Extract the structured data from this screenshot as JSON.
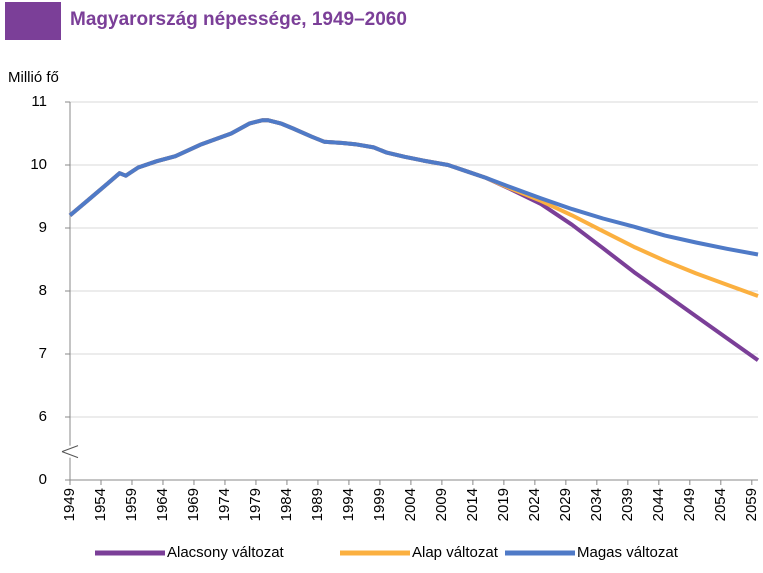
{
  "chart_data": {
    "type": "line",
    "title": "Magyarország népessége, 1949–2060",
    "ylabel": "Millió fő",
    "x": [
      1949,
      1952,
      1955,
      1957,
      1958,
      1960,
      1963,
      1966,
      1970,
      1975,
      1978,
      1980,
      1981,
      1983,
      1985,
      1988,
      1990,
      1993,
      1995,
      1998,
      2000,
      2003,
      2006,
      2010,
      2013,
      2016,
      2020,
      2025,
      2030,
      2035,
      2040,
      2045,
      2050,
      2055,
      2060
    ],
    "series": [
      {
        "name": "Alacsony változat",
        "color": "#7b3f98",
        "values": [
          9.2,
          9.45,
          9.7,
          9.87,
          9.83,
          9.96,
          10.06,
          10.14,
          10.32,
          10.5,
          10.66,
          10.71,
          10.71,
          10.66,
          10.58,
          10.45,
          10.37,
          10.35,
          10.33,
          10.28,
          10.2,
          10.13,
          10.07,
          10.0,
          9.9,
          9.8,
          9.62,
          9.38,
          9.05,
          8.68,
          8.3,
          7.95,
          7.6,
          7.25,
          6.9
        ]
      },
      {
        "name": "Alap változat",
        "color": "#fbb040",
        "values": [
          9.2,
          9.45,
          9.7,
          9.87,
          9.83,
          9.96,
          10.06,
          10.14,
          10.32,
          10.5,
          10.66,
          10.71,
          10.71,
          10.66,
          10.58,
          10.45,
          10.37,
          10.35,
          10.33,
          10.28,
          10.2,
          10.13,
          10.07,
          10.0,
          9.9,
          9.8,
          9.63,
          9.43,
          9.2,
          8.95,
          8.7,
          8.48,
          8.28,
          8.1,
          7.92
        ]
      },
      {
        "name": "Magas változat",
        "color": "#4f7ac7",
        "values": [
          9.2,
          9.45,
          9.7,
          9.87,
          9.83,
          9.96,
          10.06,
          10.14,
          10.32,
          10.5,
          10.66,
          10.71,
          10.71,
          10.66,
          10.58,
          10.45,
          10.37,
          10.35,
          10.33,
          10.28,
          10.2,
          10.13,
          10.07,
          10.0,
          9.9,
          9.8,
          9.65,
          9.47,
          9.3,
          9.15,
          9.02,
          8.88,
          8.77,
          8.67,
          8.58
        ]
      }
    ],
    "xlim": [
      1949,
      2060
    ],
    "xticks": [
      1949,
      1954,
      1959,
      1964,
      1969,
      1974,
      1979,
      1984,
      1989,
      1994,
      1999,
      2004,
      2009,
      2014,
      2019,
      2024,
      2029,
      2034,
      2039,
      2044,
      2049,
      2054,
      2059
    ],
    "ylim": [
      0,
      11
    ],
    "yticks": [
      0,
      6,
      7,
      8,
      9,
      10,
      11
    ],
    "y_axis_break": true,
    "grid": true
  }
}
